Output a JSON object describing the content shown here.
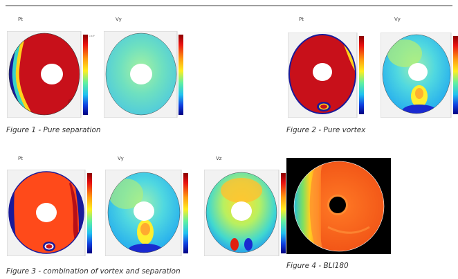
{
  "labels": {
    "fig1_pt": "Pt",
    "fig1_vy": "Vy",
    "fig2_pt": "Pt",
    "fig2_vy": "Vy",
    "fig3_pt": "Pt",
    "fig3_vy": "Vy",
    "fig3_vz": "Vz"
  },
  "captions": {
    "fig1": "Figure 1 - Pure separation",
    "fig2": "Figure 2 - Pure vortex",
    "fig3": "Figure 3 - combination of vortex and separation",
    "fig4": "Figure 4 - BLI180"
  },
  "colorbar_scale": "x 10⁵",
  "colors": {
    "high_red": "#c8101a",
    "mid_yellow": "#ffd21c",
    "mid_cyan": "#39d3c8",
    "low_blue": "#1a1a9a",
    "bli_background": "#000000",
    "bli_orange": "#ff6a20"
  }
}
